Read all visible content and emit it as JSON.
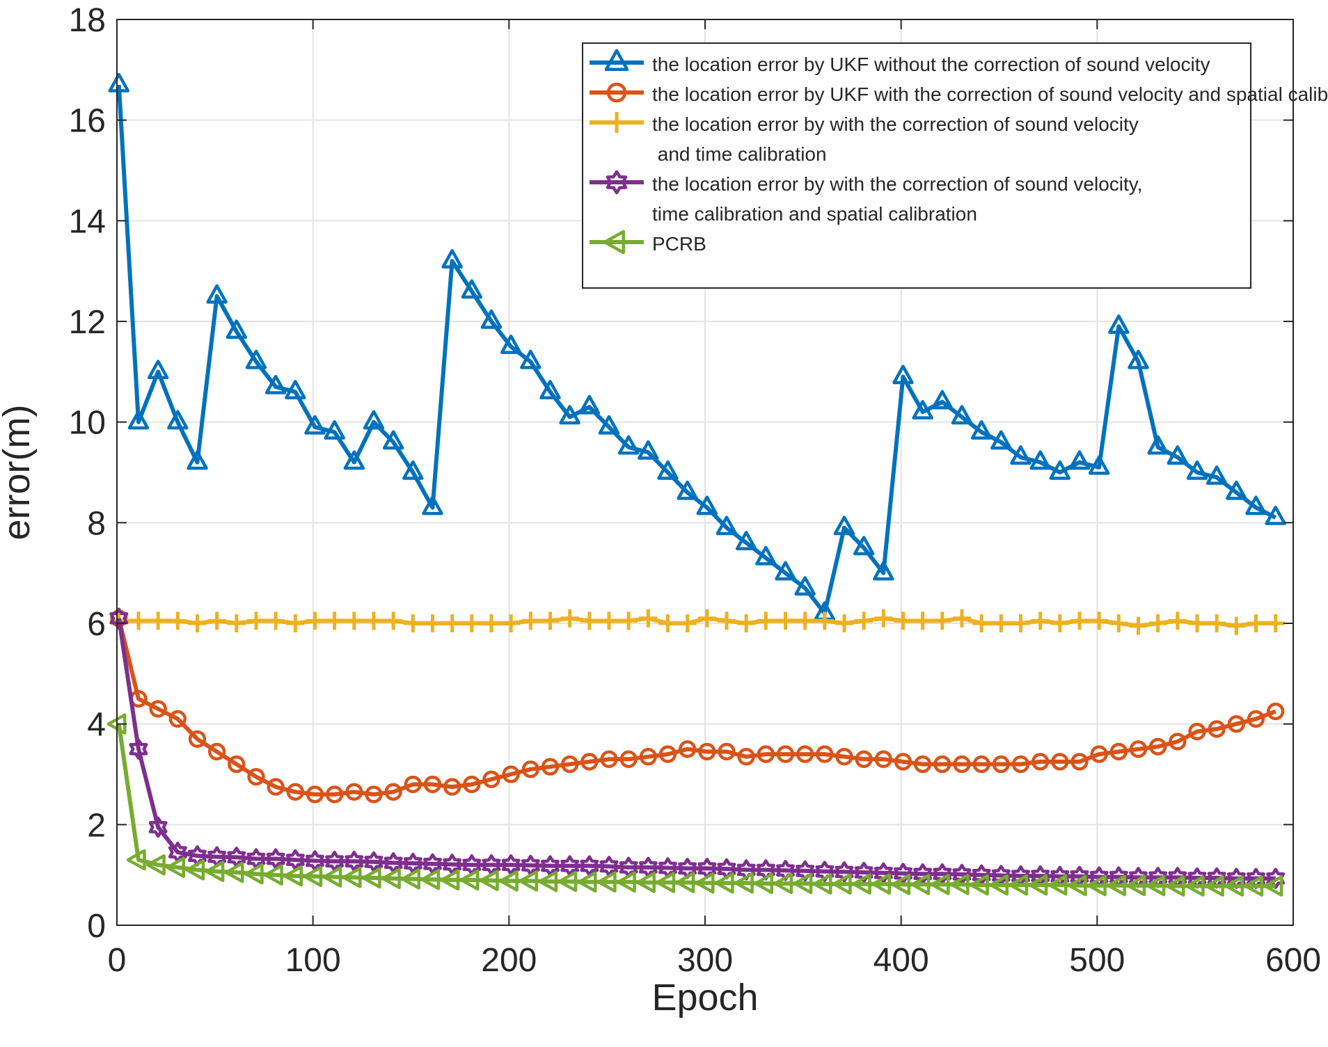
{
  "chart_data": {
    "type": "line",
    "title": "",
    "xlabel": "Epoch",
    "ylabel": "error(m)",
    "xlim": [
      0,
      600
    ],
    "ylim": [
      0,
      18
    ],
    "xticks": [
      0,
      100,
      200,
      300,
      400,
      500,
      600
    ],
    "yticks": [
      0,
      2,
      4,
      6,
      8,
      10,
      12,
      14,
      16,
      18
    ],
    "grid": true,
    "legend_position": "top-right",
    "x": [
      1,
      11,
      21,
      31,
      41,
      51,
      61,
      71,
      81,
      91,
      101,
      111,
      121,
      131,
      141,
      151,
      161,
      171,
      181,
      191,
      201,
      211,
      221,
      231,
      241,
      251,
      261,
      271,
      281,
      291,
      301,
      311,
      321,
      331,
      341,
      351,
      361,
      371,
      381,
      391,
      401,
      411,
      421,
      431,
      441,
      451,
      461,
      471,
      481,
      491,
      501,
      511,
      521,
      531,
      541,
      551,
      561,
      571,
      581,
      591
    ],
    "series": [
      {
        "name": "the location error by UKF without the correction of sound velocity",
        "color": "#0072BD",
        "marker": "triangle-up",
        "values": [
          16.7,
          10.0,
          11.0,
          10.0,
          9.2,
          12.5,
          11.8,
          11.2,
          10.7,
          10.6,
          9.9,
          9.8,
          9.2,
          10.0,
          9.6,
          9.0,
          8.3,
          13.2,
          12.6,
          12.0,
          11.5,
          11.2,
          10.6,
          10.1,
          10.3,
          9.9,
          9.5,
          9.4,
          9.0,
          8.6,
          8.3,
          7.9,
          7.6,
          7.3,
          7.0,
          6.7,
          6.2,
          7.9,
          7.5,
          7.0,
          10.9,
          10.2,
          10.4,
          10.1,
          9.8,
          9.6,
          9.3,
          9.2,
          9.0,
          9.2,
          9.1,
          11.9,
          11.2,
          9.5,
          9.3,
          9.0,
          8.9,
          8.6,
          8.3,
          8.1
        ]
      },
      {
        "name": "the location error by UKF with the correction of sound velocity and spatial calibration",
        "color": "#D95319",
        "marker": "circle",
        "values": [
          6.1,
          4.5,
          4.3,
          4.1,
          3.7,
          3.45,
          3.2,
          2.95,
          2.75,
          2.65,
          2.6,
          2.6,
          2.65,
          2.6,
          2.65,
          2.8,
          2.8,
          2.75,
          2.8,
          2.9,
          3.0,
          3.1,
          3.15,
          3.2,
          3.25,
          3.3,
          3.3,
          3.35,
          3.4,
          3.5,
          3.45,
          3.45,
          3.35,
          3.4,
          3.4,
          3.4,
          3.4,
          3.35,
          3.3,
          3.3,
          3.25,
          3.2,
          3.2,
          3.2,
          3.2,
          3.2,
          3.2,
          3.25,
          3.25,
          3.25,
          3.4,
          3.45,
          3.5,
          3.55,
          3.65,
          3.85,
          3.9,
          4.0,
          4.1,
          4.25
        ]
      },
      {
        "name": "the location error by with the correction of sound velocity\n and time calibration",
        "color": "#EDB120",
        "marker": "plus",
        "values": [
          6.05,
          6.05,
          6.05,
          6.05,
          6.0,
          6.05,
          6.0,
          6.05,
          6.05,
          6.0,
          6.05,
          6.05,
          6.05,
          6.05,
          6.05,
          6.0,
          6.0,
          6.0,
          6.0,
          6.0,
          6.0,
          6.05,
          6.05,
          6.1,
          6.05,
          6.05,
          6.05,
          6.1,
          6.0,
          6.0,
          6.1,
          6.05,
          6.0,
          6.05,
          6.05,
          6.05,
          6.05,
          6.0,
          6.05,
          6.1,
          6.05,
          6.05,
          6.05,
          6.1,
          6.0,
          6.0,
          6.0,
          6.05,
          6.0,
          6.05,
          6.05,
          6.0,
          5.95,
          6.0,
          6.05,
          6.0,
          6.0,
          5.95,
          6.0,
          6.0
        ]
      },
      {
        "name": "the location error by with the correction of sound velocity,\ntime calibration and spatial calibration",
        "color": "#7E2F8E",
        "marker": "hexagram",
        "values": [
          6.1,
          3.5,
          1.95,
          1.45,
          1.38,
          1.36,
          1.35,
          1.32,
          1.32,
          1.3,
          1.28,
          1.27,
          1.27,
          1.26,
          1.24,
          1.23,
          1.22,
          1.21,
          1.2,
          1.2,
          1.2,
          1.19,
          1.18,
          1.18,
          1.18,
          1.17,
          1.15,
          1.15,
          1.14,
          1.13,
          1.13,
          1.12,
          1.1,
          1.1,
          1.09,
          1.08,
          1.07,
          1.06,
          1.05,
          1.04,
          1.03,
          1.02,
          1.02,
          1.01,
          1.0,
          0.99,
          0.98,
          0.98,
          0.97,
          0.97,
          0.96,
          0.96,
          0.95,
          0.95,
          0.95,
          0.94,
          0.94,
          0.93,
          0.93,
          0.93
        ]
      },
      {
        "name": "PCRB",
        "color": "#77AC30",
        "marker": "triangle-left",
        "values": [
          4.0,
          1.3,
          1.2,
          1.15,
          1.1,
          1.07,
          1.05,
          1.02,
          1.0,
          0.98,
          0.97,
          0.96,
          0.95,
          0.94,
          0.93,
          0.92,
          0.91,
          0.9,
          0.9,
          0.89,
          0.88,
          0.88,
          0.87,
          0.87,
          0.86,
          0.86,
          0.86,
          0.85,
          0.85,
          0.85,
          0.84,
          0.84,
          0.84,
          0.83,
          0.83,
          0.83,
          0.82,
          0.82,
          0.82,
          0.82,
          0.81,
          0.81,
          0.81,
          0.81,
          0.8,
          0.8,
          0.8,
          0.8,
          0.8,
          0.79,
          0.79,
          0.79,
          0.79,
          0.79,
          0.78,
          0.78,
          0.78,
          0.78,
          0.78,
          0.78
        ]
      }
    ]
  }
}
